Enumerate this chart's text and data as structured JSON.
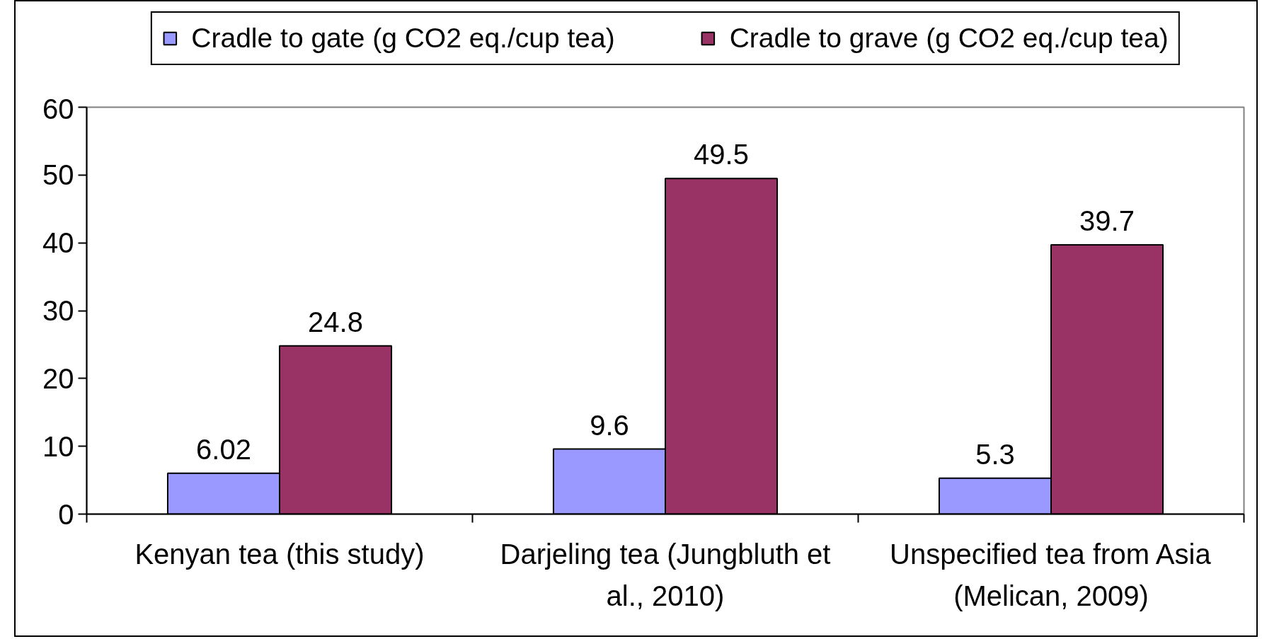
{
  "chart_data": {
    "type": "bar",
    "categories": [
      "Kenyan tea (this study)",
      "Darjeling tea (Jungbluth et al., 2010)",
      "Unspecified tea from Asia (Melican, 2009)"
    ],
    "series": [
      {
        "name": "Cradle to gate (g CO2 eq./cup tea)",
        "color": "#9999ff",
        "values": [
          6.02,
          9.6,
          5.3
        ]
      },
      {
        "name": "Cradle to grave (g CO2 eq./cup tea)",
        "color": "#993366",
        "values": [
          24.8,
          49.5,
          39.7
        ]
      }
    ],
    "ylim": [
      0,
      60
    ],
    "yticks": [
      0,
      10,
      20,
      30,
      40,
      50,
      60
    ],
    "data_labels": true,
    "legend": "top",
    "grid": false
  }
}
